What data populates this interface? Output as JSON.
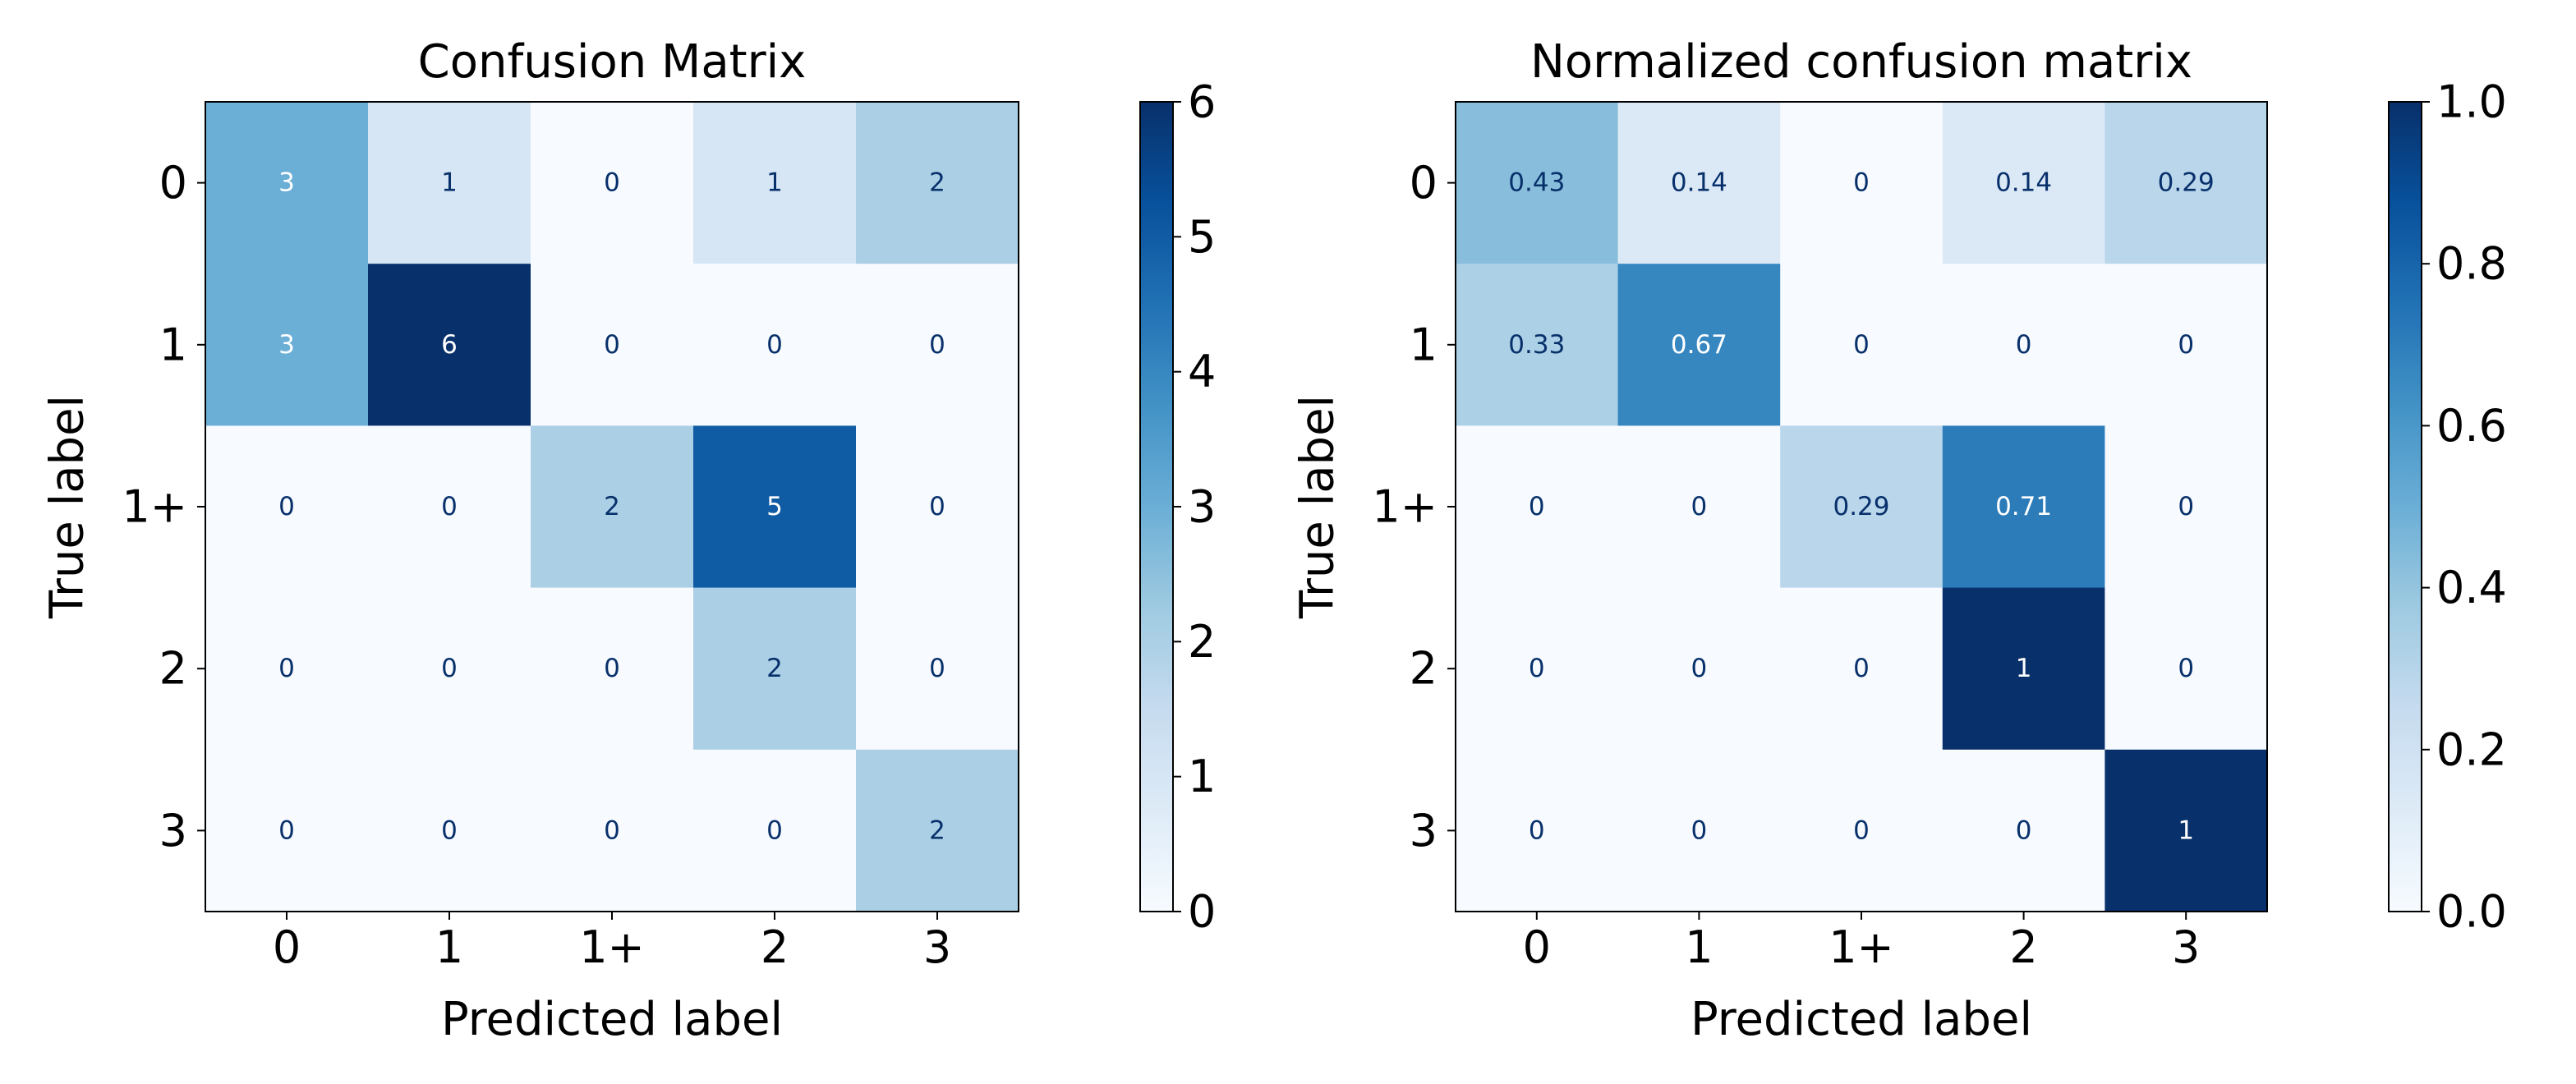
{
  "chart_data": [
    {
      "type": "heatmap",
      "title": "Confusion Matrix",
      "xlabel": "Predicted label",
      "ylabel": "True label",
      "x_categories": [
        "0",
        "1",
        "1+",
        "2",
        "3"
      ],
      "y_categories": [
        "0",
        "1",
        "1+",
        "2",
        "3"
      ],
      "values": [
        [
          3,
          1,
          0,
          1,
          2
        ],
        [
          3,
          6,
          0,
          0,
          0
        ],
        [
          0,
          0,
          2,
          5,
          0
        ],
        [
          0,
          0,
          0,
          2,
          0
        ],
        [
          0,
          0,
          0,
          0,
          2
        ]
      ],
      "cell_labels": [
        [
          "3",
          "1",
          "0",
          "1",
          "2"
        ],
        [
          "3",
          "6",
          "0",
          "0",
          "0"
        ],
        [
          "0",
          "0",
          "2",
          "5",
          "0"
        ],
        [
          "0",
          "0",
          "0",
          "2",
          "0"
        ],
        [
          "0",
          "0",
          "0",
          "0",
          "2"
        ]
      ],
      "colormap": "Blues",
      "vmin": 0,
      "vmax": 6,
      "colorbar_ticks": [
        0,
        1,
        2,
        3,
        4,
        5,
        6
      ],
      "colorbar_tick_labels": [
        "0",
        "1",
        "2",
        "3",
        "4",
        "5",
        "6"
      ]
    },
    {
      "type": "heatmap",
      "title": "Normalized confusion matrix",
      "xlabel": "Predicted label",
      "ylabel": "True label",
      "x_categories": [
        "0",
        "1",
        "1+",
        "2",
        "3"
      ],
      "y_categories": [
        "0",
        "1",
        "1+",
        "2",
        "3"
      ],
      "values": [
        [
          0.43,
          0.14,
          0,
          0.14,
          0.29
        ],
        [
          0.33,
          0.67,
          0,
          0,
          0
        ],
        [
          0,
          0,
          0.29,
          0.71,
          0
        ],
        [
          0,
          0,
          0,
          1,
          0
        ],
        [
          0,
          0,
          0,
          0,
          1
        ]
      ],
      "cell_labels": [
        [
          "0.43",
          "0.14",
          "0",
          "0.14",
          "0.29"
        ],
        [
          "0.33",
          "0.67",
          "0",
          "0",
          "0"
        ],
        [
          "0",
          "0",
          "0.29",
          "0.71",
          "0"
        ],
        [
          "0",
          "0",
          "0",
          "1",
          "0"
        ],
        [
          "0",
          "0",
          "0",
          "0",
          "1"
        ]
      ],
      "colormap": "Blues",
      "vmin": 0,
      "vmax": 1,
      "colorbar_ticks": [
        0,
        0.2,
        0.4,
        0.6,
        0.8,
        1.0
      ],
      "colorbar_tick_labels": [
        "0.0",
        "0.2",
        "0.4",
        "0.6",
        "0.8",
        "1.0"
      ]
    }
  ],
  "colors": {
    "cmap_blues": [
      "#f7fbff",
      "#deebf7",
      "#c6dbef",
      "#9ecae1",
      "#6baed6",
      "#4292c6",
      "#2171b5",
      "#08519c",
      "#08306b"
    ],
    "text_light": "#ffffff",
    "text_dark": "#08306b",
    "axis": "#000000"
  }
}
